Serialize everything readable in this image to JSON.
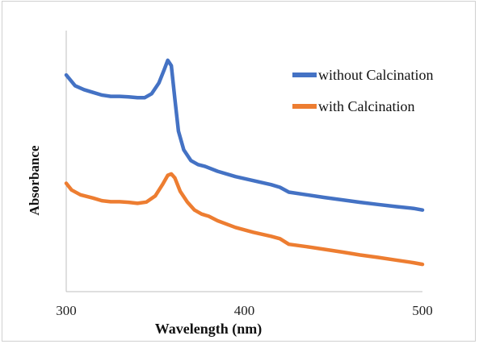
{
  "chart_data": {
    "type": "line",
    "title": "",
    "xlabel": "Wavelength (nm)",
    "ylabel": "Absorbance",
    "xlim": [
      300,
      500
    ],
    "ylim": [
      0,
      1
    ],
    "x_ticks": [
      "300",
      "400",
      "500"
    ],
    "grid": false,
    "legend_position": "top-right",
    "series": [
      {
        "name": "without Calcination",
        "color": "#4472C4",
        "points": [
          [
            300,
            0.81
          ],
          [
            305,
            0.77
          ],
          [
            310,
            0.755
          ],
          [
            315,
            0.745
          ],
          [
            320,
            0.735
          ],
          [
            325,
            0.73
          ],
          [
            330,
            0.73
          ],
          [
            335,
            0.728
          ],
          [
            340,
            0.725
          ],
          [
            344,
            0.725
          ],
          [
            348,
            0.74
          ],
          [
            352,
            0.78
          ],
          [
            355,
            0.83
          ],
          [
            357,
            0.865
          ],
          [
            359,
            0.845
          ],
          [
            361,
            0.72
          ],
          [
            363,
            0.6
          ],
          [
            366,
            0.53
          ],
          [
            370,
            0.49
          ],
          [
            374,
            0.475
          ],
          [
            378,
            0.468
          ],
          [
            385,
            0.45
          ],
          [
            395,
            0.43
          ],
          [
            405,
            0.415
          ],
          [
            415,
            0.4
          ],
          [
            420,
            0.39
          ],
          [
            425,
            0.372
          ],
          [
            435,
            0.362
          ],
          [
            445,
            0.352
          ],
          [
            455,
            0.343
          ],
          [
            465,
            0.334
          ],
          [
            475,
            0.326
          ],
          [
            485,
            0.318
          ],
          [
            495,
            0.311
          ],
          [
            500,
            0.305
          ]
        ]
      },
      {
        "name": "with Calcination",
        "color": "#ED7D31",
        "points": [
          [
            300,
            0.405
          ],
          [
            303,
            0.38
          ],
          [
            308,
            0.362
          ],
          [
            315,
            0.35
          ],
          [
            320,
            0.34
          ],
          [
            325,
            0.336
          ],
          [
            330,
            0.336
          ],
          [
            335,
            0.334
          ],
          [
            340,
            0.33
          ],
          [
            345,
            0.335
          ],
          [
            350,
            0.358
          ],
          [
            354,
            0.4
          ],
          [
            357,
            0.435
          ],
          [
            359,
            0.44
          ],
          [
            361,
            0.425
          ],
          [
            364,
            0.375
          ],
          [
            368,
            0.335
          ],
          [
            372,
            0.305
          ],
          [
            376,
            0.29
          ],
          [
            380,
            0.282
          ],
          [
            385,
            0.265
          ],
          [
            395,
            0.24
          ],
          [
            405,
            0.222
          ],
          [
            415,
            0.207
          ],
          [
            420,
            0.198
          ],
          [
            425,
            0.177
          ],
          [
            435,
            0.168
          ],
          [
            445,
            0.158
          ],
          [
            455,
            0.148
          ],
          [
            465,
            0.137
          ],
          [
            475,
            0.128
          ],
          [
            485,
            0.118
          ],
          [
            495,
            0.108
          ],
          [
            500,
            0.102
          ]
        ]
      }
    ]
  }
}
